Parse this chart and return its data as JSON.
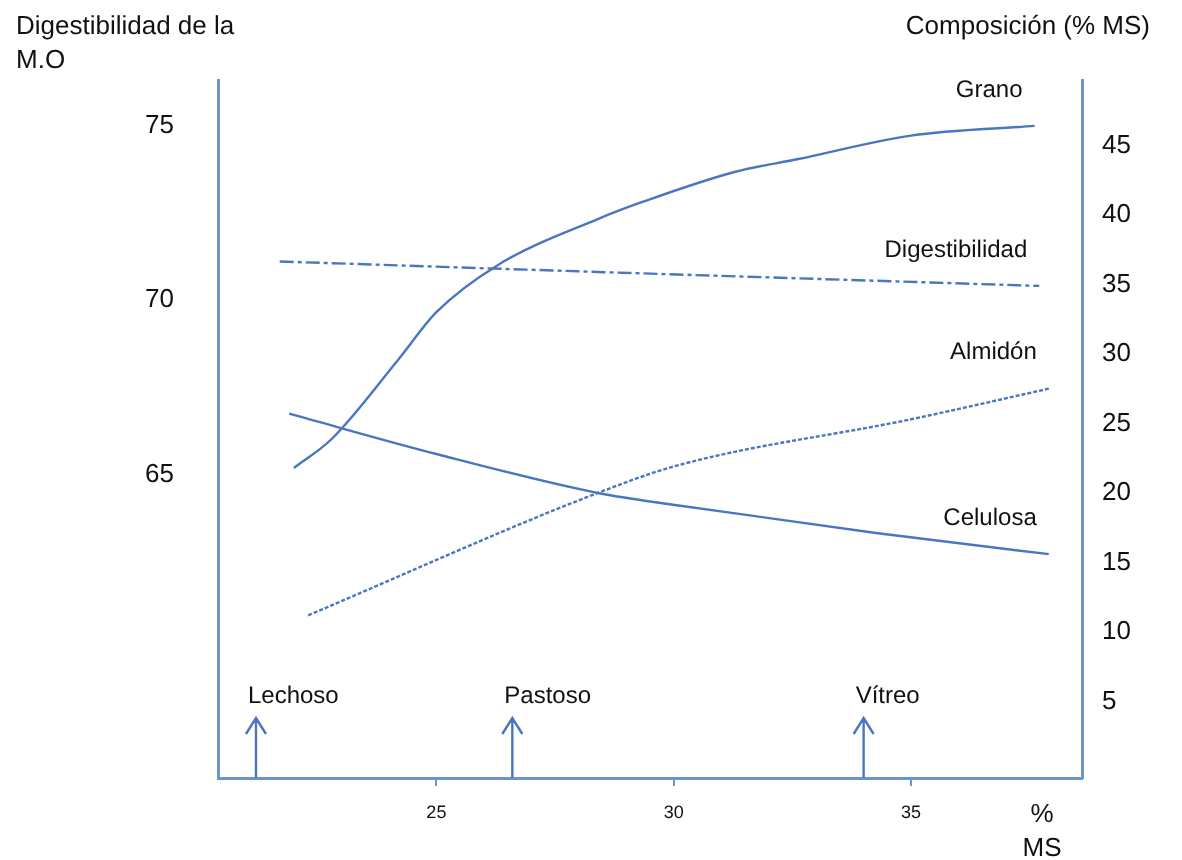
{
  "chart_data": {
    "type": "line",
    "xlabel": "% MS",
    "ylabel": "Digestibilidad de la M.O",
    "y2label": "Composición (% MS)",
    "xlim": [
      20.4,
      38.6
    ],
    "xticks": [
      25,
      30,
      35
    ],
    "ylim": [
      56.3,
      76.3
    ],
    "yticks": [
      65,
      70,
      75
    ],
    "y2lim": [
      -0.5,
      49.7
    ],
    "y2ticks": [
      5,
      10,
      15,
      20,
      25,
      30,
      35,
      40,
      45
    ],
    "grid": false,
    "legend": false,
    "marker": "none",
    "series": [
      {
        "name": "Grano",
        "color": "#4a76c0",
        "axis": "y2",
        "line_style": "solid",
        "x": [
          22,
          22.8,
          24.2,
          25,
          26.3,
          28.4,
          29.4,
          31.3,
          32.6,
          35,
          37.6
        ],
        "values": [
          21.8,
          23.9,
          29.6,
          33,
          36.4,
          39.7,
          41,
          43.1,
          44,
          45.7,
          46.4
        ]
      },
      {
        "name": "Digestibilidad",
        "color": "#4a76c0",
        "axis": "y",
        "line_style": "dashed",
        "x": [
          21.7,
          28.4,
          37.7
        ],
        "values": [
          71.1,
          70.8,
          70.4
        ]
      },
      {
        "name": "Almidón",
        "color": "#4a76c0",
        "axis": "y2",
        "line_style": "dotted",
        "x": [
          22.3,
          28.4,
          30.1,
          35,
          37.9
        ],
        "values": [
          11.2,
          20,
          22,
          25.3,
          27.5
        ]
      },
      {
        "name": "Celulosa",
        "color": "#4a76c0",
        "axis": "y2",
        "line_style": "solid",
        "x": [
          21.9,
          25,
          28.4,
          30.1,
          34.3,
          37.9
        ],
        "values": [
          25.7,
          22.8,
          20,
          19.1,
          17.1,
          15.6
        ]
      }
    ],
    "ref_lines": [
      {
        "axis": "x",
        "value": 21.2,
        "label": "Lechoso"
      },
      {
        "axis": "x",
        "value": 26.6,
        "label": "Pastoso"
      },
      {
        "axis": "x",
        "value": 34,
        "label": "Vítreo"
      }
    ]
  }
}
